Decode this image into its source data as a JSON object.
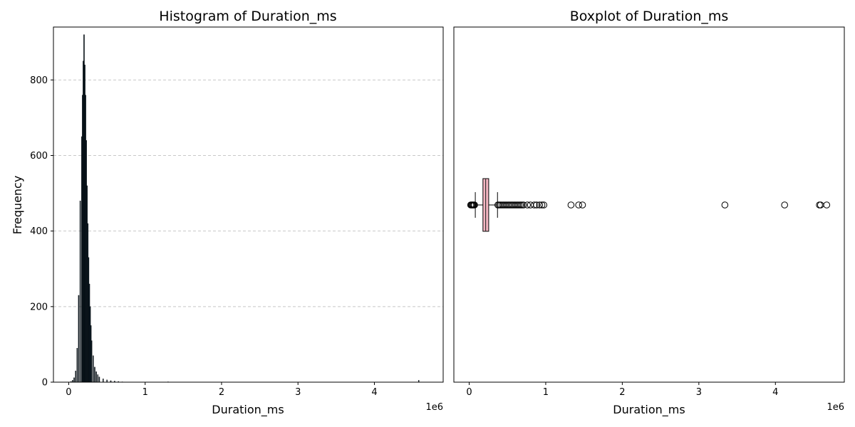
{
  "chart_data": [
    {
      "type": "bar",
      "title": "Histogram of Duration_ms",
      "xlabel": "Duration_ms",
      "ylabel": "Frequency",
      "x_scale_label": "1e6",
      "xlim": [
        -200000,
        4900000
      ],
      "ylim": [
        0,
        940
      ],
      "x_ticks": [
        0,
        1,
        2,
        3,
        4
      ],
      "y_ticks": [
        0,
        200,
        400,
        600,
        800
      ],
      "grid": "y dashed",
      "bar_color": "#0b1a24",
      "bins_ms": [
        [
          30000,
          2
        ],
        [
          50000,
          5
        ],
        [
          70000,
          12
        ],
        [
          90000,
          30
        ],
        [
          110000,
          90
        ],
        [
          130000,
          230
        ],
        [
          150000,
          480
        ],
        [
          170000,
          650
        ],
        [
          180000,
          760
        ],
        [
          190000,
          850
        ],
        [
          200000,
          920
        ],
        [
          210000,
          840
        ],
        [
          220000,
          760
        ],
        [
          230000,
          640
        ],
        [
          240000,
          520
        ],
        [
          250000,
          420
        ],
        [
          260000,
          330
        ],
        [
          270000,
          260
        ],
        [
          280000,
          200
        ],
        [
          290000,
          150
        ],
        [
          300000,
          110
        ],
        [
          320000,
          70
        ],
        [
          340000,
          40
        ],
        [
          360000,
          28
        ],
        [
          380000,
          20
        ],
        [
          400000,
          14
        ],
        [
          450000,
          9
        ],
        [
          500000,
          6
        ],
        [
          550000,
          4
        ],
        [
          600000,
          3
        ],
        [
          650000,
          2
        ],
        [
          700000,
          1
        ],
        [
          1300000,
          1
        ],
        [
          4580000,
          5
        ]
      ]
    },
    {
      "type": "boxplot",
      "title": "Boxplot of Duration_ms",
      "xlabel": "Duration_ms",
      "x_scale_label": "1e6",
      "xlim": [
        -200000,
        4900000
      ],
      "x_ticks": [
        0,
        1,
        2,
        3,
        4
      ],
      "box_color": "#f4b6c2",
      "whisker_low": 80000,
      "q1": 180000,
      "median": 215000,
      "q3": 255000,
      "whisker_high": 370000,
      "outliers": [
        20000,
        30000,
        40000,
        50000,
        60000,
        70000,
        375000,
        390000,
        410000,
        430000,
        450000,
        470000,
        490000,
        510000,
        530000,
        550000,
        570000,
        590000,
        610000,
        630000,
        650000,
        670000,
        690000,
        710000,
        760000,
        800000,
        850000,
        880000,
        920000,
        950000,
        975000,
        1330000,
        1430000,
        1480000,
        3340000,
        4120000,
        4575000,
        4590000,
        4670000
      ]
    }
  ]
}
